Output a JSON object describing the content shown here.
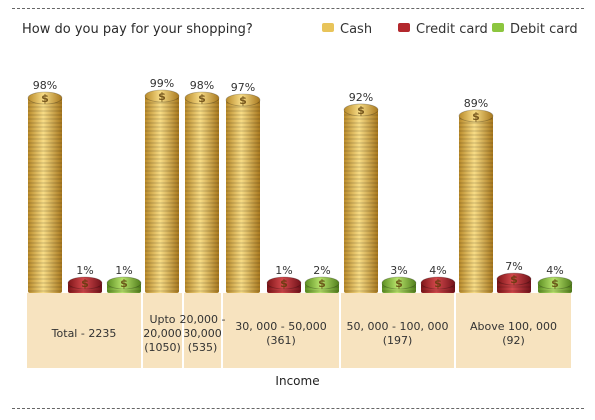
{
  "chart_data": {
    "type": "bar",
    "title": "How do you pay for your shopping?",
    "xlabel": "Income",
    "ylabel": "",
    "ylim": [
      0,
      100
    ],
    "categories": [
      [
        "Total - 2235"
      ],
      [
        "Upto",
        "20,000",
        "(1050)"
      ],
      [
        "20,000 -",
        "30,000",
        "(535)"
      ],
      [
        "30, 000 - 50,000",
        "(361)"
      ],
      [
        "50, 000 - 100, 000",
        "(197)"
      ],
      [
        "Above 100, 000",
        "(92)"
      ]
    ],
    "series": [
      {
        "name": "Cash",
        "color": "#e8c45a",
        "values": [
          98,
          99,
          98,
          97,
          92,
          89
        ]
      },
      {
        "name": "Credit card",
        "color": "#b3282d",
        "values": [
          1,
          null,
          null,
          1,
          4,
          7
        ]
      },
      {
        "name": "Debit card",
        "color": "#8cc63f",
        "values": [
          1,
          null,
          null,
          2,
          3,
          4
        ]
      }
    ],
    "value_labels": [
      [
        "98%",
        "99%",
        "98%",
        "97%",
        "92%",
        "89%"
      ],
      [
        "1%",
        null,
        null,
        "1%",
        "4%",
        "7%"
      ],
      [
        "1%",
        null,
        null,
        "2%",
        "3%",
        "4%"
      ]
    ],
    "icon": "coin-stack-icon",
    "grid": false,
    "legend_position": "top-right"
  }
}
